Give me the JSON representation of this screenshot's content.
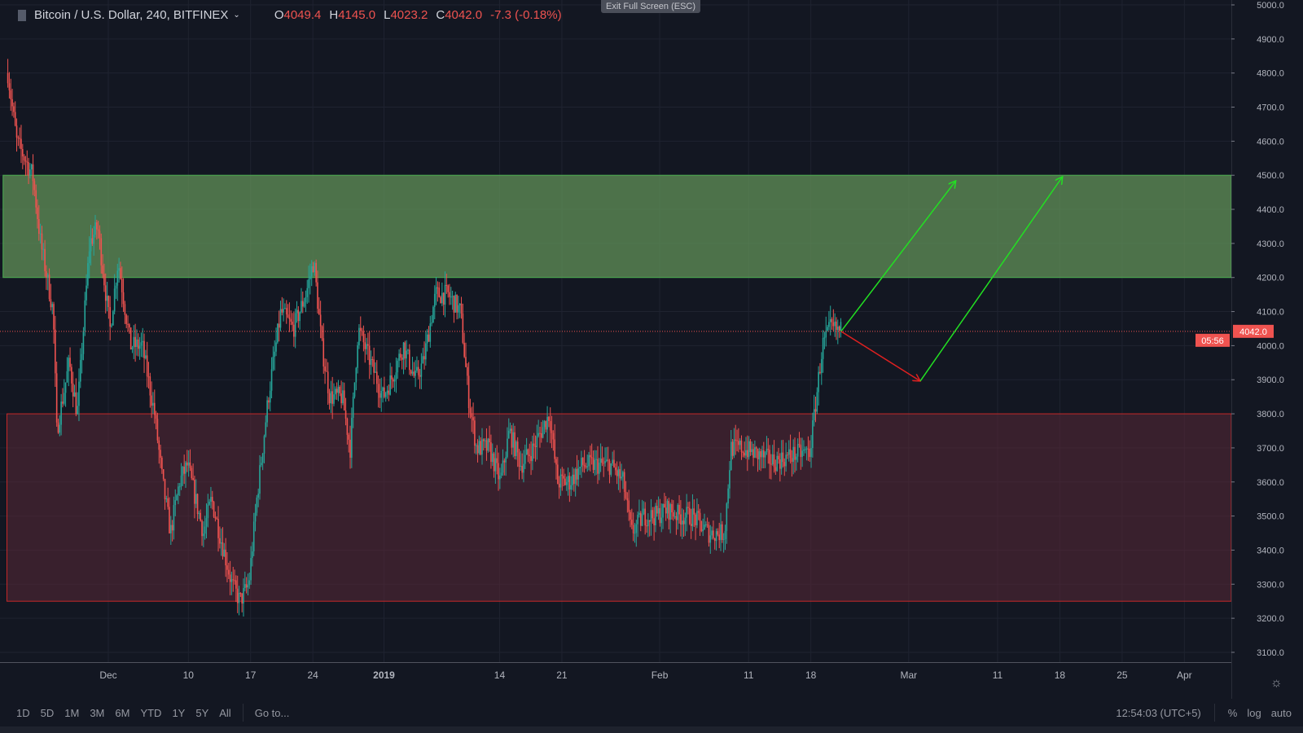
{
  "header": {
    "symbol": "Bitcoin / U.S. Dollar, 240, BITFINEX",
    "open_label": "O",
    "open": "4049.4",
    "high_label": "H",
    "high": "4145.0",
    "low_label": "L",
    "low": "4023.2",
    "close_label": "C",
    "close": "4042.0",
    "change": "-7.3 (-0.18%)"
  },
  "exit_fullscreen": "Exit Full Screen (ESC)",
  "price_label": "4042.0",
  "countdown": "05:56",
  "bottom": {
    "ranges": [
      "1D",
      "5D",
      "1M",
      "3M",
      "6M",
      "YTD",
      "1Y",
      "5Y",
      "All"
    ],
    "goto": "Go to...",
    "time": "12:54:03 (UTC+5)",
    "percent": "%",
    "log": "log",
    "auto": "auto"
  },
  "colors": {
    "bg": "#131722",
    "up": "#26a69a",
    "down": "#ef5350",
    "grid": "#1f2330",
    "resistance": "#4caf50",
    "support": "#c62828",
    "arrow_up": "#22e022",
    "arrow_down": "#e02020"
  },
  "chart_data": {
    "type": "candlestick",
    "title": "Bitcoin / U.S. Dollar, 240, BITFINEX",
    "x_unit": "days since Dec 1 2018",
    "ylim": [
      3050,
      5010
    ],
    "xlim": [
      -12.2,
      126
    ],
    "y_ticks": [
      3100,
      3200,
      3300,
      3400,
      3500,
      3600,
      3700,
      3800,
      3900,
      4000,
      4100,
      4200,
      4300,
      4400,
      4500,
      4600,
      4700,
      4800,
      4900,
      5000
    ],
    "x_ticks": [
      {
        "d": 0,
        "label": "Dec"
      },
      {
        "d": 9,
        "label": "10"
      },
      {
        "d": 16,
        "label": "17"
      },
      {
        "d": 23,
        "label": "24"
      },
      {
        "d": 31,
        "label": "2019"
      },
      {
        "d": 44,
        "label": "14"
      },
      {
        "d": 51,
        "label": "21"
      },
      {
        "d": 62,
        "label": "Feb"
      },
      {
        "d": 72,
        "label": "11"
      },
      {
        "d": 79,
        "label": "18"
      },
      {
        "d": 90,
        "label": "Mar"
      },
      {
        "d": 100,
        "label": "11"
      },
      {
        "d": 107,
        "label": "18"
      },
      {
        "d": 114,
        "label": "25"
      },
      {
        "d": 121,
        "label": "Apr"
      }
    ],
    "price_path": [
      [
        -11.3,
        4800
      ],
      [
        -10.3,
        4600
      ],
      [
        -8.5,
        4500
      ],
      [
        -7.6,
        4300
      ],
      [
        -6.2,
        4100
      ],
      [
        -5.8,
        3750
      ],
      [
        -4.4,
        3950
      ],
      [
        -3.5,
        3800
      ],
      [
        -2.1,
        4300
      ],
      [
        -1.2,
        4350
      ],
      [
        0.2,
        4050
      ],
      [
        1.1,
        4250
      ],
      [
        2.5,
        4000
      ],
      [
        3.8,
        4000
      ],
      [
        5.2,
        3800
      ],
      [
        6.1,
        3600
      ],
      [
        7.0,
        3450
      ],
      [
        8.0,
        3600
      ],
      [
        8.9,
        3650
      ],
      [
        9.8,
        3550
      ],
      [
        10.7,
        3450
      ],
      [
        11.6,
        3550
      ],
      [
        12.5,
        3450
      ],
      [
        13.9,
        3300
      ],
      [
        14.8,
        3250
      ],
      [
        15.8,
        3300
      ],
      [
        16.7,
        3550
      ],
      [
        18.0,
        3850
      ],
      [
        19.4,
        4100
      ],
      [
        20.8,
        4050
      ],
      [
        22.2,
        4150
      ],
      [
        23.1,
        4250
      ],
      [
        24.0,
        4000
      ],
      [
        24.9,
        3850
      ],
      [
        26.3,
        3850
      ],
      [
        27.2,
        3700
      ],
      [
        28.1,
        4050
      ],
      [
        29.5,
        3950
      ],
      [
        30.9,
        3850
      ],
      [
        31.8,
        3900
      ],
      [
        33.2,
        4000
      ],
      [
        34.5,
        3900
      ],
      [
        35.4,
        3950
      ],
      [
        36.8,
        4150
      ],
      [
        38.2,
        4150
      ],
      [
        39.6,
        4100
      ],
      [
        40.5,
        3850
      ],
      [
        41.4,
        3700
      ],
      [
        42.8,
        3700
      ],
      [
        44.1,
        3600
      ],
      [
        45.1,
        3750
      ],
      [
        46.4,
        3650
      ],
      [
        47.8,
        3700
      ],
      [
        49.6,
        3800
      ],
      [
        50.5,
        3600
      ],
      [
        51.9,
        3600
      ],
      [
        53.3,
        3650
      ],
      [
        55.1,
        3650
      ],
      [
        56.5,
        3650
      ],
      [
        57.9,
        3600
      ],
      [
        58.8,
        3450
      ],
      [
        60.2,
        3500
      ],
      [
        61.5,
        3500
      ],
      [
        62.9,
        3520
      ],
      [
        64.3,
        3500
      ],
      [
        65.7,
        3500
      ],
      [
        67.5,
        3450
      ],
      [
        69.3,
        3450
      ],
      [
        70.0,
        3700
      ],
      [
        71.2,
        3700
      ],
      [
        73.0,
        3680
      ],
      [
        74.8,
        3660
      ],
      [
        77.1,
        3680
      ],
      [
        78.9,
        3690
      ],
      [
        79.4,
        3800
      ],
      [
        80.3,
        4000
      ],
      [
        81.2,
        4050
      ],
      [
        82.4,
        4042
      ]
    ],
    "zones": [
      {
        "name": "resistance",
        "from": 4200,
        "to": 4500,
        "d_start": -12.2
      },
      {
        "name": "support",
        "from": 3250,
        "to": 3800,
        "d_start": -11.4
      }
    ],
    "arrows": [
      {
        "from": [
          82.4,
          4042
        ],
        "to": [
          95.3,
          4484
        ],
        "color": "up"
      },
      {
        "from": [
          82.4,
          4042
        ],
        "to": [
          91.3,
          3896
        ],
        "color": "down"
      },
      {
        "from": [
          91.3,
          3896
        ],
        "to": [
          107.3,
          4496
        ],
        "color": "up"
      }
    ]
  }
}
